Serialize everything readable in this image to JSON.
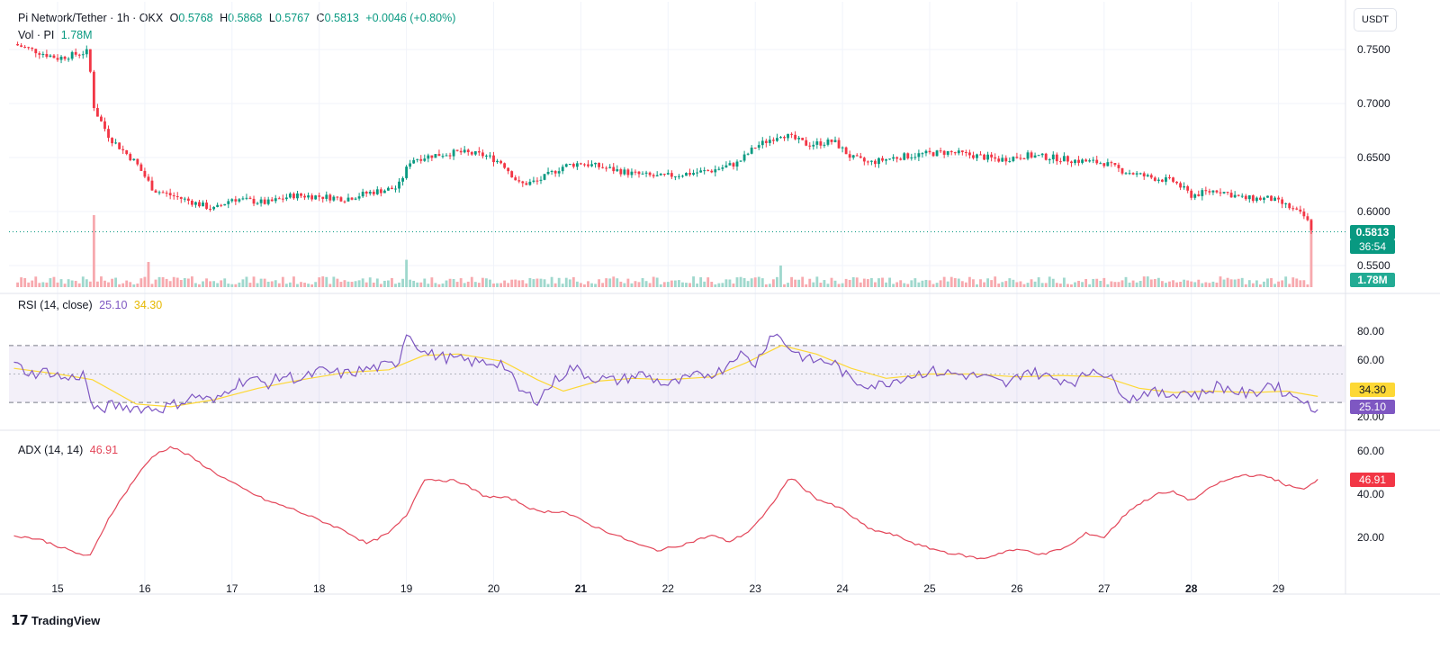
{
  "header": {
    "pair": "Pi Network/Tether · 1h · OKX",
    "open_label": "O",
    "open": "0.5768",
    "high_label": "H",
    "high": "0.5868",
    "low_label": "L",
    "low": "0.5767",
    "close_label": "C",
    "close": "0.5813",
    "change": "+0.0046 (+0.80%)",
    "vol_label": "Vol · PI",
    "vol_value": "1.78M"
  },
  "currency_button": "USDT",
  "price_axis": {
    "ticks": [
      "0.7500",
      "0.7000",
      "0.6500",
      "0.6000",
      "0.5500"
    ],
    "last_price_tag": "0.5813",
    "countdown_tag": "36:54",
    "volume_tag": "1.78M"
  },
  "rsi_panel": {
    "title": "RSI (14, close)",
    "rsi_value": "25.10",
    "ma_value": "34.30",
    "ticks": [
      "80.00",
      "60.00",
      "40.00",
      "20.00"
    ]
  },
  "adx_panel": {
    "title": "ADX (14, 14)",
    "adx_value": "46.91",
    "ticks": [
      "60.00",
      "40.00",
      "20.00"
    ]
  },
  "time_axis": {
    "labels": [
      "15",
      "16",
      "17",
      "18",
      "19",
      "20",
      "21",
      "22",
      "23",
      "24",
      "25",
      "26",
      "27",
      "28",
      "29"
    ],
    "bold": [
      "21",
      "28"
    ]
  },
  "brand": "TradingView",
  "colors": {
    "up": "#089981",
    "down": "#f23645",
    "rsi": "#7e57c2",
    "rsi_ma": "#fdd835",
    "adx": "#e3475a"
  },
  "chart_data": [
    {
      "type": "candlestick",
      "title": "Pi Network/Tether · 1h · OKX",
      "y_range": [
        0.54,
        0.765
      ],
      "x": [
        "15",
        "16",
        "17",
        "18",
        "19",
        "20",
        "21",
        "22",
        "23",
        "24",
        "25",
        "26",
        "27",
        "28",
        "29"
      ],
      "close_path": [
        [
          14.5,
          0.755
        ],
        [
          15.0,
          0.742
        ],
        [
          15.35,
          0.748
        ],
        [
          15.42,
          0.695
        ],
        [
          15.6,
          0.668
        ],
        [
          15.9,
          0.645
        ],
        [
          16.1,
          0.62
        ],
        [
          16.5,
          0.61
        ],
        [
          16.8,
          0.602
        ],
        [
          17.0,
          0.612
        ],
        [
          17.4,
          0.608
        ],
        [
          17.7,
          0.615
        ],
        [
          18.0,
          0.614
        ],
        [
          18.3,
          0.612
        ],
        [
          18.6,
          0.618
        ],
        [
          18.9,
          0.622
        ],
        [
          19.05,
          0.648
        ],
        [
          19.3,
          0.652
        ],
        [
          19.6,
          0.655
        ],
        [
          19.9,
          0.652
        ],
        [
          20.1,
          0.645
        ],
        [
          20.3,
          0.625
        ],
        [
          20.5,
          0.628
        ],
        [
          20.8,
          0.642
        ],
        [
          21.0,
          0.645
        ],
        [
          21.3,
          0.64
        ],
        [
          21.6,
          0.635
        ],
        [
          21.9,
          0.632
        ],
        [
          22.2,
          0.635
        ],
        [
          22.5,
          0.638
        ],
        [
          22.8,
          0.645
        ],
        [
          23.0,
          0.66
        ],
        [
          23.3,
          0.672
        ],
        [
          23.6,
          0.662
        ],
        [
          23.9,
          0.665
        ],
        [
          24.1,
          0.65
        ],
        [
          24.3,
          0.645
        ],
        [
          24.6,
          0.65
        ],
        [
          24.9,
          0.653
        ],
        [
          25.2,
          0.655
        ],
        [
          25.5,
          0.652
        ],
        [
          25.8,
          0.648
        ],
        [
          26.1,
          0.652
        ],
        [
          26.4,
          0.65
        ],
        [
          26.7,
          0.647
        ],
        [
          27.0,
          0.645
        ],
        [
          27.2,
          0.638
        ],
        [
          27.5,
          0.632
        ],
        [
          27.8,
          0.628
        ],
        [
          28.0,
          0.615
        ],
        [
          28.3,
          0.62
        ],
        [
          28.6,
          0.612
        ],
        [
          28.9,
          0.612
        ],
        [
          29.1,
          0.605
        ],
        [
          29.3,
          0.595
        ],
        [
          29.4,
          0.5813
        ]
      ]
    },
    {
      "type": "bar",
      "title": "Vol · PI",
      "last_value": "1.78M",
      "spikes": [
        [
          15.43,
          1.0
        ],
        [
          16.05,
          0.35
        ],
        [
          19.0,
          0.38
        ],
        [
          23.3,
          0.3
        ],
        [
          29.38,
          0.95
        ]
      ]
    },
    {
      "type": "line",
      "title": "RSI (14, close)",
      "y_range": [
        15,
        83
      ],
      "levels": [
        70,
        50,
        30
      ],
      "series": [
        {
          "name": "RSI (14, close)",
          "values": [
            [
              14.5,
              57
            ],
            [
              14.7,
              50
            ],
            [
              14.9,
              52
            ],
            [
              15.1,
              46
            ],
            [
              15.3,
              50
            ],
            [
              15.42,
              23
            ],
            [
              15.6,
              28
            ],
            [
              15.8,
              27
            ],
            [
              16.0,
              26
            ],
            [
              16.2,
              26
            ],
            [
              16.4,
              30
            ],
            [
              16.6,
              35
            ],
            [
              16.8,
              30
            ],
            [
              17.0,
              42
            ],
            [
              17.2,
              47
            ],
            [
              17.4,
              43
            ],
            [
              17.6,
              49
            ],
            [
              17.8,
              46
            ],
            [
              18.0,
              52
            ],
            [
              18.3,
              50
            ],
            [
              18.6,
              54
            ],
            [
              18.9,
              57
            ],
            [
              19.0,
              80
            ],
            [
              19.2,
              65
            ],
            [
              19.4,
              62
            ],
            [
              19.6,
              60
            ],
            [
              19.8,
              58
            ],
            [
              20.1,
              58
            ],
            [
              20.3,
              38
            ],
            [
              20.5,
              32
            ],
            [
              20.7,
              45
            ],
            [
              20.9,
              55
            ],
            [
              21.1,
              48
            ],
            [
              21.4,
              45
            ],
            [
              21.7,
              50
            ],
            [
              22.0,
              42
            ],
            [
              22.3,
              48
            ],
            [
              22.6,
              52
            ],
            [
              22.8,
              65
            ],
            [
              23.0,
              57
            ],
            [
              23.2,
              80
            ],
            [
              23.4,
              68
            ],
            [
              23.6,
              60
            ],
            [
              23.9,
              58
            ],
            [
              24.1,
              45
            ],
            [
              24.4,
              42
            ],
            [
              24.7,
              48
            ],
            [
              25.0,
              52
            ],
            [
              25.3,
              50
            ],
            [
              25.6,
              48
            ],
            [
              25.9,
              42
            ],
            [
              26.1,
              53
            ],
            [
              26.4,
              47
            ],
            [
              26.7,
              45
            ],
            [
              26.9,
              55
            ],
            [
              27.1,
              45
            ],
            [
              27.3,
              32
            ],
            [
              27.5,
              38
            ],
            [
              27.7,
              35
            ],
            [
              27.9,
              38
            ],
            [
              28.1,
              35
            ],
            [
              28.3,
              42
            ],
            [
              28.5,
              38
            ],
            [
              28.7,
              35
            ],
            [
              28.9,
              44
            ],
            [
              29.1,
              36
            ],
            [
              29.3,
              33
            ],
            [
              29.38,
              21
            ],
            [
              29.45,
              25.1
            ]
          ]
        },
        {
          "name": "RSI-based MA",
          "values": [
            [
              14.5,
              54
            ],
            [
              15.0,
              50
            ],
            [
              15.4,
              46
            ],
            [
              15.9,
              29
            ],
            [
              16.3,
              27
            ],
            [
              16.8,
              32
            ],
            [
              17.3,
              40
            ],
            [
              17.8,
              46
            ],
            [
              18.3,
              51
            ],
            [
              18.8,
              53
            ],
            [
              19.2,
              63
            ],
            [
              19.6,
              64
            ],
            [
              20.1,
              59
            ],
            [
              20.5,
              46
            ],
            [
              20.8,
              38
            ],
            [
              21.2,
              45
            ],
            [
              21.6,
              47
            ],
            [
              22.0,
              46
            ],
            [
              22.5,
              48
            ],
            [
              22.9,
              58
            ],
            [
              23.3,
              70
            ],
            [
              23.7,
              64
            ],
            [
              24.1,
              54
            ],
            [
              24.5,
              47
            ],
            [
              25.0,
              50
            ],
            [
              25.5,
              50
            ],
            [
              26.0,
              48
            ],
            [
              26.5,
              49
            ],
            [
              27.0,
              48
            ],
            [
              27.4,
              40
            ],
            [
              27.8,
              37
            ],
            [
              28.2,
              38
            ],
            [
              28.7,
              37
            ],
            [
              29.1,
              38
            ],
            [
              29.45,
              34.3
            ]
          ]
        }
      ]
    },
    {
      "type": "line",
      "title": "ADX (14, 14)",
      "y_range": [
        5,
        68
      ],
      "series": [
        {
          "name": "ADX (14, 14)",
          "values": [
            [
              14.5,
              21
            ],
            [
              14.8,
              19
            ],
            [
              15.0,
              16
            ],
            [
              15.2,
              13
            ],
            [
              15.37,
              11
            ],
            [
              15.6,
              30
            ],
            [
              15.9,
              48
            ],
            [
              16.1,
              58
            ],
            [
              16.3,
              62
            ],
            [
              16.5,
              58
            ],
            [
              16.8,
              50
            ],
            [
              17.1,
              43
            ],
            [
              17.4,
              37
            ],
            [
              17.7,
              33
            ],
            [
              18.0,
              28
            ],
            [
              18.3,
              23
            ],
            [
              18.55,
              17
            ],
            [
              18.8,
              22
            ],
            [
              19.0,
              30
            ],
            [
              19.2,
              47
            ],
            [
              19.6,
              46
            ],
            [
              19.9,
              39
            ],
            [
              20.2,
              38
            ],
            [
              20.5,
              32
            ],
            [
              20.8,
              32
            ],
            [
              21.1,
              26
            ],
            [
              21.4,
              21
            ],
            [
              21.7,
              16
            ],
            [
              21.9,
              14
            ],
            [
              22.2,
              17
            ],
            [
              22.5,
              21
            ],
            [
              22.7,
              18
            ],
            [
              22.9,
              22
            ],
            [
              23.1,
              30
            ],
            [
              23.4,
              48
            ],
            [
              23.7,
              38
            ],
            [
              24.0,
              33
            ],
            [
              24.3,
              24
            ],
            [
              24.6,
              21
            ],
            [
              24.9,
              16
            ],
            [
              25.2,
              13
            ],
            [
              25.6,
              10
            ],
            [
              25.9,
              14
            ],
            [
              26.1,
              14
            ],
            [
              26.3,
              12
            ],
            [
              26.6,
              16
            ],
            [
              26.8,
              22
            ],
            [
              27.0,
              20
            ],
            [
              27.3,
              33
            ],
            [
              27.6,
              40
            ],
            [
              27.8,
              41
            ],
            [
              28.0,
              37
            ],
            [
              28.3,
              45
            ],
            [
              28.6,
              49
            ],
            [
              28.9,
              48
            ],
            [
              29.1,
              44
            ],
            [
              29.3,
              42
            ],
            [
              29.45,
              46.91
            ]
          ]
        }
      ]
    }
  ]
}
